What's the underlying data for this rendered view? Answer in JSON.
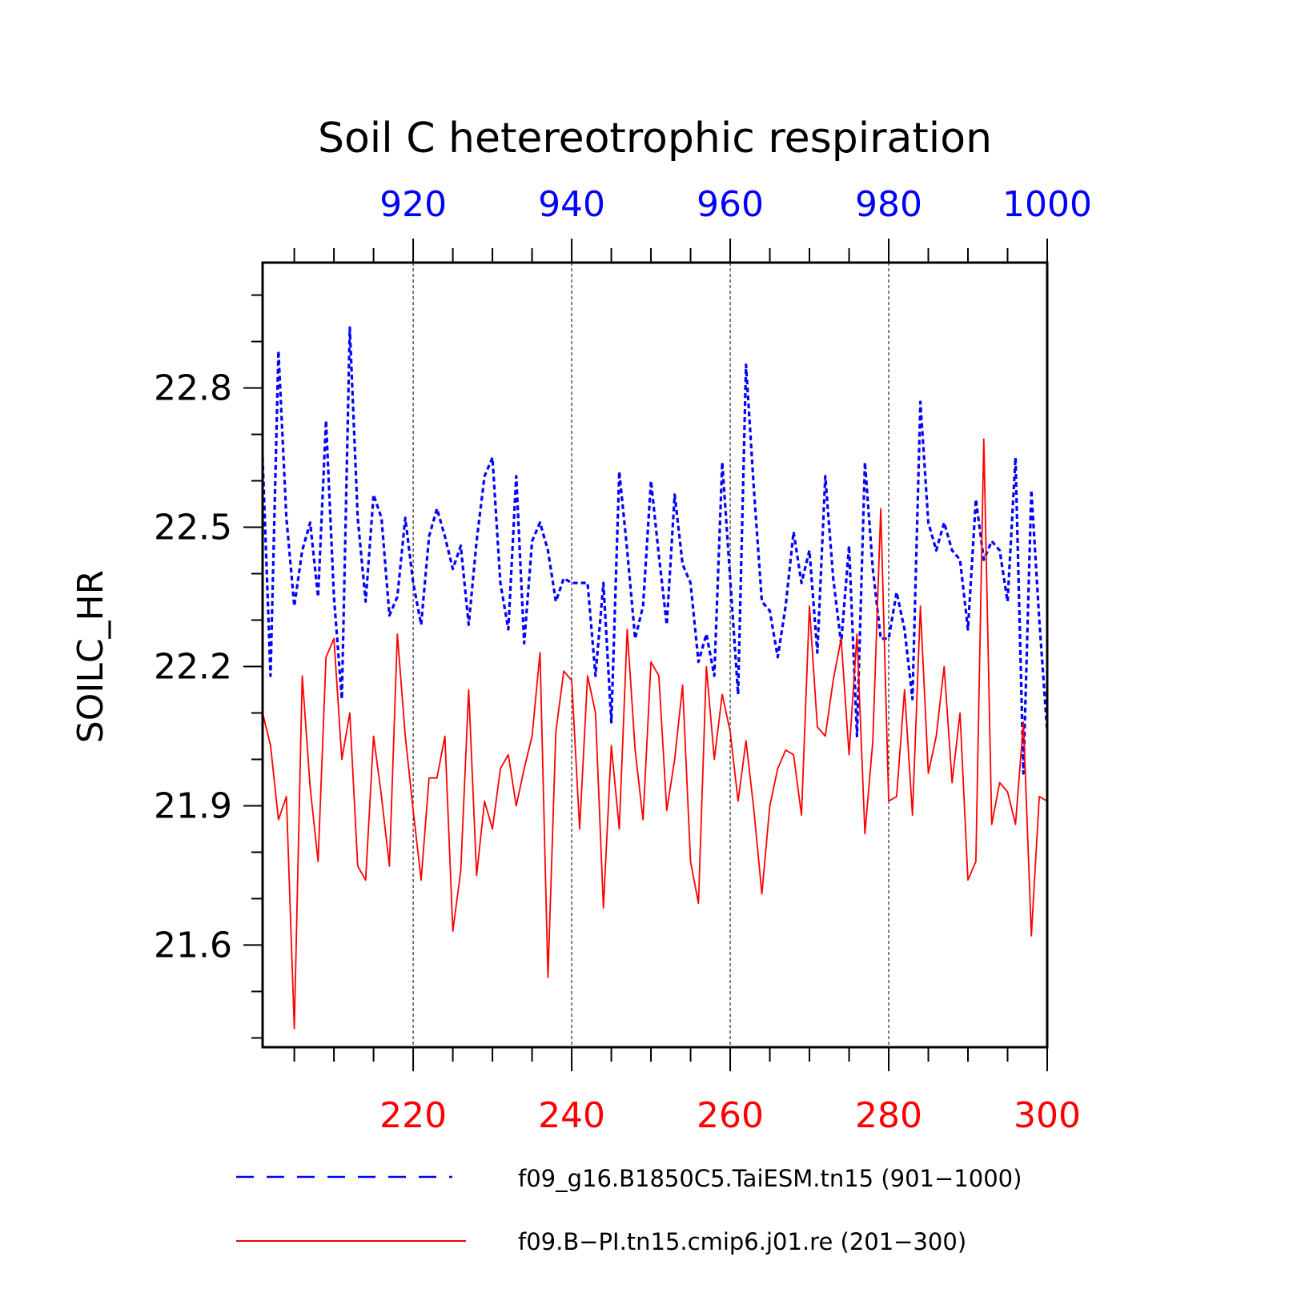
{
  "chart_data": {
    "type": "line",
    "title": "Soil C hetereotrophic respiration",
    "ylabel": "SOILC_HR",
    "ylim": [
      21.38,
      23.07
    ],
    "yticks": [
      21.6,
      21.9,
      22.2,
      22.5,
      22.8
    ],
    "ytick_labels": [
      "21.6",
      "21.9",
      "22.2",
      "22.5",
      "22.8"
    ],
    "grid": "vertical dashed lines at labeled x ticks",
    "x_bottom": {
      "color": "#ff0000",
      "range": [
        201,
        300
      ],
      "ticks": [
        220,
        240,
        260,
        280,
        300
      ],
      "tick_labels": [
        "220",
        "240",
        "260",
        "280",
        "300"
      ]
    },
    "x_top": {
      "color": "#0000ff",
      "range": [
        901,
        1000
      ],
      "ticks": [
        920,
        940,
        960,
        980,
        1000
      ],
      "tick_labels": [
        "920",
        "940",
        "960",
        "980",
        "1000"
      ]
    },
    "legend_position": "bottom",
    "series": [
      {
        "name": "f09_g16.B1850C5.TaiESM.tn15 (901−1000)",
        "color": "#0000ff",
        "style": "dashed",
        "axis": "top",
        "x_start": 901,
        "values": [
          22.65,
          22.18,
          22.88,
          22.52,
          22.33,
          22.45,
          22.51,
          22.35,
          22.73,
          22.35,
          22.13,
          22.93,
          22.52,
          22.34,
          22.57,
          22.52,
          22.31,
          22.35,
          22.52,
          22.38,
          22.29,
          22.48,
          22.54,
          22.48,
          22.41,
          22.46,
          22.29,
          22.47,
          22.61,
          22.65,
          22.38,
          22.28,
          22.61,
          22.25,
          22.47,
          22.51,
          22.45,
          22.34,
          22.39,
          22.38,
          22.38,
          22.38,
          22.18,
          22.38,
          22.08,
          22.62,
          22.45,
          22.26,
          22.33,
          22.6,
          22.44,
          22.29,
          22.57,
          22.42,
          22.38,
          22.21,
          22.27,
          22.18,
          22.64,
          22.39,
          22.14,
          22.85,
          22.58,
          22.34,
          22.32,
          22.22,
          22.33,
          22.49,
          22.38,
          22.45,
          22.23,
          22.61,
          22.39,
          22.25,
          22.46,
          22.05,
          22.64,
          22.41,
          22.26,
          22.26,
          22.36,
          22.28,
          22.13,
          22.77,
          22.51,
          22.45,
          22.51,
          22.45,
          22.43,
          22.28,
          22.56,
          22.43,
          22.47,
          22.45,
          22.34,
          22.65,
          21.97,
          22.58,
          22.3,
          22.06
        ]
      },
      {
        "name": "f09.B−PI.tn15.cmip6.j01.re (201−300)",
        "color": "#ff0000",
        "style": "solid",
        "axis": "bottom",
        "x_start": 201,
        "values": [
          22.1,
          22.03,
          21.87,
          21.92,
          21.42,
          22.18,
          21.94,
          21.78,
          22.22,
          22.26,
          22.0,
          22.1,
          21.77,
          21.74,
          22.05,
          21.92,
          21.77,
          22.27,
          22.05,
          21.89,
          21.74,
          21.96,
          21.96,
          22.05,
          21.63,
          21.76,
          22.15,
          21.75,
          21.91,
          21.85,
          21.98,
          22.01,
          21.9,
          21.98,
          22.05,
          22.23,
          21.53,
          22.06,
          22.19,
          22.17,
          21.85,
          22.18,
          22.1,
          21.68,
          22.03,
          21.85,
          22.28,
          22.02,
          21.87,
          22.21,
          22.18,
          21.89,
          22.0,
          22.16,
          21.78,
          21.69,
          22.2,
          22.0,
          22.14,
          22.06,
          21.91,
          22.04,
          21.89,
          21.71,
          21.9,
          21.98,
          22.02,
          22.01,
          21.88,
          22.33,
          22.07,
          22.05,
          22.17,
          22.26,
          22.01,
          22.27,
          21.84,
          22.04,
          22.54,
          21.91,
          21.92,
          22.15,
          21.88,
          22.33,
          21.97,
          22.05,
          22.2,
          21.95,
          22.1,
          21.74,
          21.78,
          22.69,
          21.86,
          21.95,
          21.93,
          21.86,
          22.08,
          21.62,
          21.92,
          21.91
        ]
      }
    ]
  }
}
